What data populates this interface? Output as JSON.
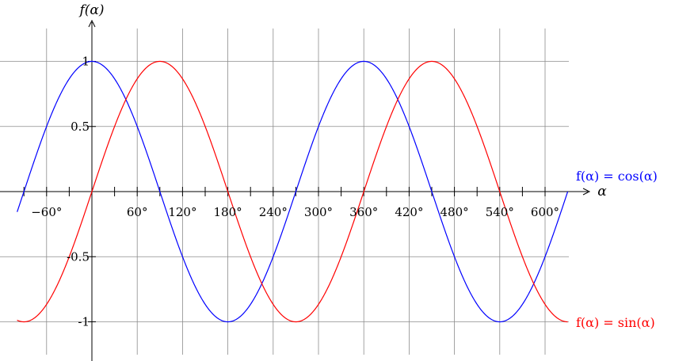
{
  "chart_data": {
    "type": "line",
    "title": "",
    "xlabel": "α",
    "ylabel": "f(α)",
    "xlim": [
      -99,
      608
    ],
    "ylim": [
      -1.26,
      1.28
    ],
    "grid": true,
    "x_ticks": [
      -60,
      60,
      120,
      180,
      240,
      300,
      360,
      420,
      480,
      540,
      600
    ],
    "x_tick_labels": [
      "−60°",
      "60°",
      "120°",
      "180°",
      "240°",
      "300°",
      "360°",
      "420°",
      "480°",
      "540°",
      "600°"
    ],
    "x_minor_ticks": [
      -90,
      -60,
      -30,
      30,
      60,
      90,
      120,
      150,
      180,
      210,
      240,
      270,
      300,
      330,
      360,
      390,
      420,
      450,
      480,
      510,
      540,
      570,
      600
    ],
    "y_ticks": [
      1,
      0.5,
      -0.5,
      -1
    ],
    "y_tick_labels": [
      "1",
      "0.5",
      "-0.5",
      "-1"
    ],
    "series": [
      {
        "name": "f(α) = cos(α)",
        "function": "cos",
        "color": "#0000ff",
        "x": [
          -99,
          -90,
          -60,
          -30,
          0,
          30,
          60,
          90,
          120,
          150,
          180,
          210,
          240,
          270,
          300,
          330,
          360,
          390,
          420,
          450,
          480,
          510,
          540,
          570,
          600,
          630
        ],
        "values": [
          -0.156,
          0,
          0.5,
          0.866,
          1,
          0.866,
          0.5,
          0,
          -0.5,
          -0.866,
          -1,
          -0.866,
          -0.5,
          0,
          0.5,
          0.866,
          1,
          0.866,
          0.5,
          0,
          -0.5,
          -0.866,
          -1,
          -0.866,
          -0.5,
          0
        ]
      },
      {
        "name": "f(α) = sin(α)",
        "function": "sin",
        "color": "#ff0000",
        "x": [
          -99,
          -90,
          -60,
          -30,
          0,
          30,
          60,
          90,
          120,
          150,
          180,
          210,
          240,
          270,
          300,
          330,
          360,
          390,
          420,
          450,
          480,
          510,
          540,
          570,
          600,
          630
        ],
        "values": [
          -0.988,
          -1,
          -0.866,
          -0.5,
          0,
          0.5,
          0.866,
          1,
          0.866,
          0.5,
          0,
          -0.5,
          -0.866,
          -1,
          -0.866,
          -0.5,
          0,
          0.5,
          0.866,
          1,
          0.866,
          0.5,
          0,
          -0.5,
          -0.866,
          -1
        ]
      }
    ]
  }
}
